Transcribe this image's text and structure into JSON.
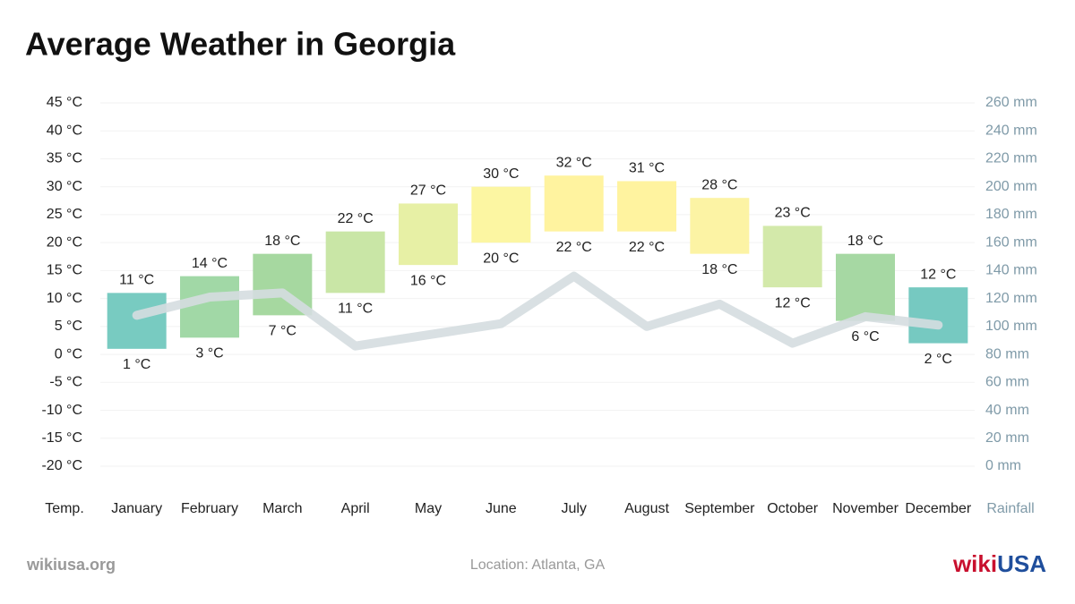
{
  "chart_data": {
    "type": "range_bar",
    "title": "Average Weather in Georgia",
    "y_label": "Temp.",
    "y2_label": "Rainfall",
    "categories": [
      "January",
      "February",
      "March",
      "April",
      "May",
      "June",
      "July",
      "August",
      "September",
      "October",
      "November",
      "December"
    ],
    "series": [
      {
        "role": "low",
        "values": [
          1,
          3,
          7,
          11,
          16,
          20,
          22,
          22,
          18,
          12,
          6,
          2
        ],
        "value_labels": [
          "1 °C",
          "3 °C",
          "7 °C",
          "11 °C",
          "16 °C",
          "20 °C",
          "22 °C",
          "22 °C",
          "18 °C",
          "12 °C",
          "6 °C",
          "2 °C"
        ]
      },
      {
        "role": "high",
        "values": [
          11,
          14,
          18,
          22,
          27,
          30,
          32,
          31,
          28,
          23,
          18,
          12
        ],
        "value_labels": [
          "11 °C",
          "14 °C",
          "18 °C",
          "22 °C",
          "27 °C",
          "30 °C",
          "32 °C",
          "31 °C",
          "28 °C",
          "23 °C",
          "18 °C",
          "12 °C"
        ]
      },
      {
        "type": "line",
        "axis": "y2",
        "color": "#d5dde0",
        "values": [
          108,
          121,
          124,
          86,
          94,
          102,
          136,
          100,
          116,
          88,
          107,
          101
        ]
      }
    ],
    "colors": [
      "#78cbc1",
      "#a1d8a6",
      "#a6d8a0",
      "#c9e6a6",
      "#e7f0a5",
      "#fcf6a2",
      "#fff39f",
      "#fff39f",
      "#fcf3a4",
      "#d3e9aa",
      "#a6d8a3",
      "#76c9c1"
    ],
    "ylim": [
      -20,
      45
    ],
    "yticks": [
      {
        "value": -20,
        "label": "-20 °C"
      },
      {
        "value": -15,
        "label": "-15 °C"
      },
      {
        "value": -10,
        "label": "-10 °C"
      },
      {
        "value": -5,
        "label": "-5 °C"
      },
      {
        "value": 0,
        "label": "0 °C"
      },
      {
        "value": 5,
        "label": "5 °C"
      },
      {
        "value": 10,
        "label": "10 °C"
      },
      {
        "value": 15,
        "label": "15 °C"
      },
      {
        "value": 20,
        "label": "20 °C"
      },
      {
        "value": 25,
        "label": "25 °C"
      },
      {
        "value": 30,
        "label": "30 °C"
      },
      {
        "value": 35,
        "label": "35 °C"
      },
      {
        "value": 40,
        "label": "40 °C"
      },
      {
        "value": 45,
        "label": "45 °C"
      }
    ],
    "y2lim": [
      0,
      260
    ],
    "y2ticks": [
      {
        "value": 0,
        "label": "0 mm"
      },
      {
        "value": 20,
        "label": "20 mm"
      },
      {
        "value": 40,
        "label": "40 mm"
      },
      {
        "value": 60,
        "label": "60 mm"
      },
      {
        "value": 80,
        "label": "80 mm"
      },
      {
        "value": 100,
        "label": "100 mm"
      },
      {
        "value": 120,
        "label": "120 mm"
      },
      {
        "value": 140,
        "label": "140 mm"
      },
      {
        "value": 160,
        "label": "160 mm"
      },
      {
        "value": 180,
        "label": "180 mm"
      },
      {
        "value": 200,
        "label": "200 mm"
      },
      {
        "value": 220,
        "label": "220 mm"
      },
      {
        "value": 240,
        "label": "240 mm"
      },
      {
        "value": 260,
        "label": "260 mm"
      }
    ],
    "grid": true
  },
  "footer": {
    "site": "wikiusa.org",
    "location": "Location: Atlanta, GA",
    "logo": [
      "wiki",
      "USA"
    ]
  }
}
